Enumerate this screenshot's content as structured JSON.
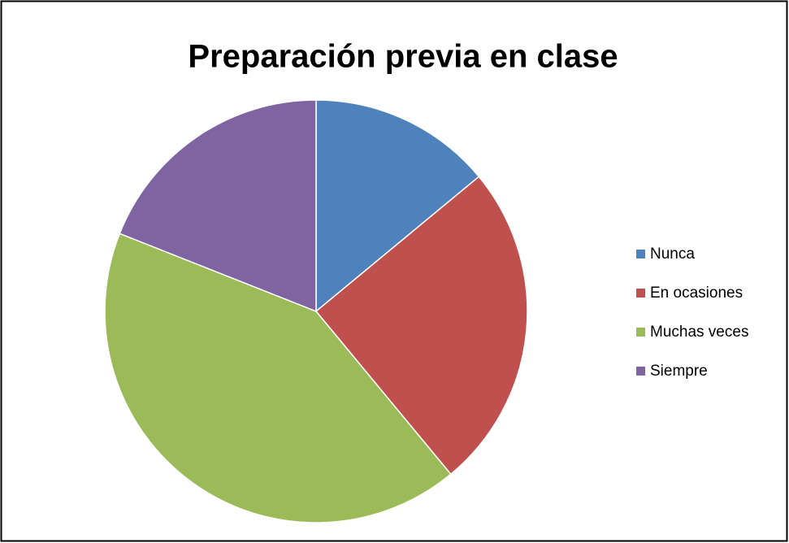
{
  "chart_data": {
    "type": "pie",
    "title": "Preparación previa en clase",
    "categories": [
      "Nunca",
      "En ocasiones",
      "Muchas veces",
      "Siempre"
    ],
    "values": [
      14,
      25,
      42,
      19
    ],
    "colors": [
      "#4f81bd",
      "#c0504d",
      "#9bbb59",
      "#8064a2"
    ],
    "legend": "right"
  }
}
